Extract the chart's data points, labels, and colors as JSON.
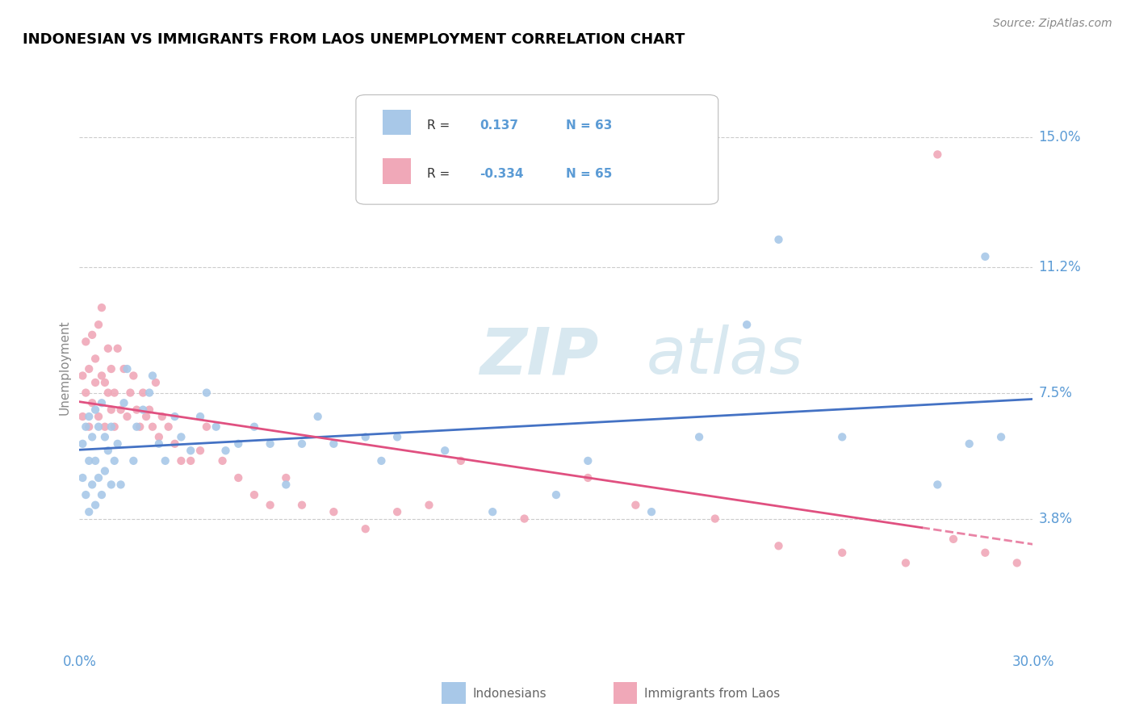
{
  "title": "INDONESIAN VS IMMIGRANTS FROM LAOS UNEMPLOYMENT CORRELATION CHART",
  "source": "Source: ZipAtlas.com",
  "ylabel": "Unemployment",
  "xlim": [
    0.0,
    0.3
  ],
  "ylim": [
    0.0,
    0.165
  ],
  "yticks": [
    0.038,
    0.075,
    0.112,
    0.15
  ],
  "ytick_labels": [
    "3.8%",
    "7.5%",
    "11.2%",
    "15.0%"
  ],
  "xticks": [
    0.0,
    0.3
  ],
  "xtick_labels": [
    "0.0%",
    "30.0%"
  ],
  "r_indonesian": 0.137,
  "n_indonesian": 63,
  "r_laos": -0.334,
  "n_laos": 65,
  "color_indonesian": "#A8C8E8",
  "color_laos": "#F0A8B8",
  "line_color_indonesian": "#4472C4",
  "line_color_laos": "#E05080",
  "watermark_zip": "ZIP",
  "watermark_atlas": "atlas",
  "legend_label_1": "Indonesians",
  "legend_label_2": "Immigrants from Laos",
  "indonesian_x": [
    0.001,
    0.001,
    0.002,
    0.002,
    0.003,
    0.003,
    0.003,
    0.004,
    0.004,
    0.005,
    0.005,
    0.005,
    0.006,
    0.006,
    0.007,
    0.007,
    0.008,
    0.008,
    0.009,
    0.01,
    0.01,
    0.011,
    0.012,
    0.013,
    0.014,
    0.015,
    0.017,
    0.018,
    0.02,
    0.022,
    0.023,
    0.025,
    0.027,
    0.03,
    0.032,
    0.035,
    0.038,
    0.04,
    0.043,
    0.046,
    0.05,
    0.055,
    0.06,
    0.065,
    0.07,
    0.075,
    0.08,
    0.09,
    0.095,
    0.1,
    0.115,
    0.13,
    0.15,
    0.16,
    0.18,
    0.195,
    0.21,
    0.22,
    0.24,
    0.27,
    0.28,
    0.285,
    0.29
  ],
  "indonesian_y": [
    0.05,
    0.06,
    0.045,
    0.065,
    0.04,
    0.055,
    0.068,
    0.048,
    0.062,
    0.042,
    0.055,
    0.07,
    0.05,
    0.065,
    0.045,
    0.072,
    0.052,
    0.062,
    0.058,
    0.048,
    0.065,
    0.055,
    0.06,
    0.048,
    0.072,
    0.082,
    0.055,
    0.065,
    0.07,
    0.075,
    0.08,
    0.06,
    0.055,
    0.068,
    0.062,
    0.058,
    0.068,
    0.075,
    0.065,
    0.058,
    0.06,
    0.065,
    0.06,
    0.048,
    0.06,
    0.068,
    0.06,
    0.062,
    0.055,
    0.062,
    0.058,
    0.04,
    0.045,
    0.055,
    0.04,
    0.062,
    0.095,
    0.12,
    0.062,
    0.048,
    0.06,
    0.115,
    0.062
  ],
  "laos_x": [
    0.001,
    0.001,
    0.002,
    0.002,
    0.003,
    0.003,
    0.004,
    0.004,
    0.005,
    0.005,
    0.006,
    0.006,
    0.007,
    0.007,
    0.008,
    0.008,
    0.009,
    0.009,
    0.01,
    0.01,
    0.011,
    0.011,
    0.012,
    0.013,
    0.014,
    0.015,
    0.016,
    0.017,
    0.018,
    0.019,
    0.02,
    0.021,
    0.022,
    0.023,
    0.024,
    0.025,
    0.026,
    0.028,
    0.03,
    0.032,
    0.035,
    0.038,
    0.04,
    0.045,
    0.05,
    0.055,
    0.06,
    0.065,
    0.07,
    0.08,
    0.09,
    0.1,
    0.11,
    0.12,
    0.14,
    0.16,
    0.175,
    0.2,
    0.22,
    0.24,
    0.26,
    0.27,
    0.275,
    0.285,
    0.295
  ],
  "laos_y": [
    0.068,
    0.08,
    0.075,
    0.09,
    0.065,
    0.082,
    0.092,
    0.072,
    0.078,
    0.085,
    0.095,
    0.068,
    0.08,
    0.1,
    0.078,
    0.065,
    0.075,
    0.088,
    0.07,
    0.082,
    0.075,
    0.065,
    0.088,
    0.07,
    0.082,
    0.068,
    0.075,
    0.08,
    0.07,
    0.065,
    0.075,
    0.068,
    0.07,
    0.065,
    0.078,
    0.062,
    0.068,
    0.065,
    0.06,
    0.055,
    0.055,
    0.058,
    0.065,
    0.055,
    0.05,
    0.045,
    0.042,
    0.05,
    0.042,
    0.04,
    0.035,
    0.04,
    0.042,
    0.055,
    0.038,
    0.05,
    0.042,
    0.038,
    0.03,
    0.028,
    0.025,
    0.145,
    0.032,
    0.028,
    0.025
  ]
}
